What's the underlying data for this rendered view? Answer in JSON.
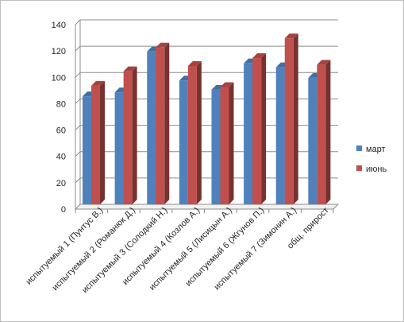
{
  "chart_data": {
    "type": "bar",
    "categories": [
      "испытуемый 1 (Пунтус В.)",
      "испытуемый 2 (Романюк Д.)",
      "испытуемый 3 (Солодкий Н.)",
      "испытуемый 4 (Козлов А.)",
      "испытуемый 5 (Лисицын А.)",
      "испытуемый 6 (Жгунов П.)",
      "испытуемый 7 (Зимонин А.)",
      "общ. прирост"
    ],
    "series": [
      {
        "name": "март",
        "color": "#4f81bd",
        "values": [
          82,
          85,
          116,
          94,
          87,
          107,
          104,
          96
        ]
      },
      {
        "name": "июнь",
        "color": "#c0504d",
        "values": [
          90,
          101,
          119,
          105,
          89,
          111,
          126,
          106
        ]
      }
    ],
    "ylim": [
      0,
      140
    ],
    "yticks": [
      "0",
      "20",
      "40",
      "60",
      "80",
      "100",
      "120",
      "140"
    ],
    "grid": true,
    "legend_position": "right",
    "style": "3d-clustered-column"
  }
}
